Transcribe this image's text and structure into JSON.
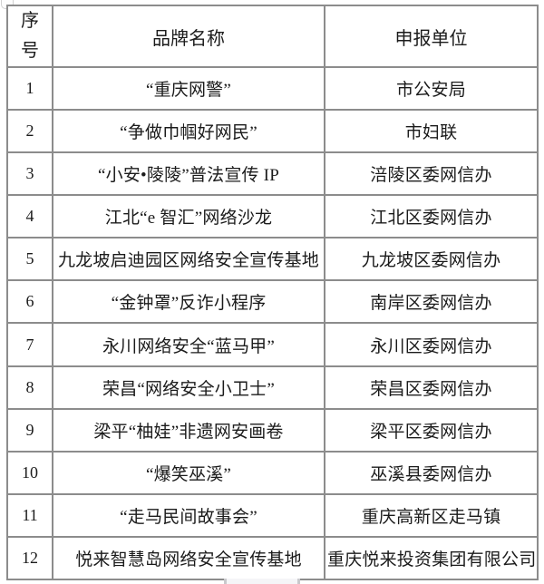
{
  "page": {
    "background": "#ffffff"
  },
  "colors": {
    "grid_border": "#8c8c8c",
    "text": "#1b1b1b",
    "scrollbar_thumb": "#f5f5f7"
  },
  "table": {
    "headers": {
      "seq": "序号",
      "brand": "品牌名称",
      "unit": "申报单位"
    },
    "rows": [
      {
        "num": "1",
        "brand": "“重庆网警”",
        "unit": "市公安局"
      },
      {
        "num": "2",
        "brand": "“争做巾帼好网民”",
        "unit": "市妇联"
      },
      {
        "num": "3",
        "brand": "“小安•陵陵”普法宣传 IP",
        "unit": "涪陵区委网信办"
      },
      {
        "num": "4",
        "brand": "江北“e 智汇”网络沙龙",
        "unit": "江北区委网信办"
      },
      {
        "num": "5",
        "brand": "九龙坡启迪园区网络安全宣传基地",
        "unit": "九龙坡区委网信办"
      },
      {
        "num": "6",
        "brand": "“金钟罩”反诈小程序",
        "unit": "南岸区委网信办"
      },
      {
        "num": "7",
        "brand": "永川网络安全“蓝马甲”",
        "unit": "永川区委网信办"
      },
      {
        "num": "8",
        "brand": "荣昌“网络安全小卫士”",
        "unit": "荣昌区委网信办"
      },
      {
        "num": "9",
        "brand": "梁平“柚娃”非遗网安画卷",
        "unit": "梁平区委网信办"
      },
      {
        "num": "10",
        "brand": "“爆笑巫溪”",
        "unit": "巫溪县委网信办"
      },
      {
        "num": "11",
        "brand": "“走马民间故事会”",
        "unit": "重庆高新区走马镇"
      },
      {
        "num": "12",
        "brand": "悦来智慧岛网络安全宣传基地",
        "unit": "重庆悦来投资集团有限公司"
      }
    ]
  }
}
